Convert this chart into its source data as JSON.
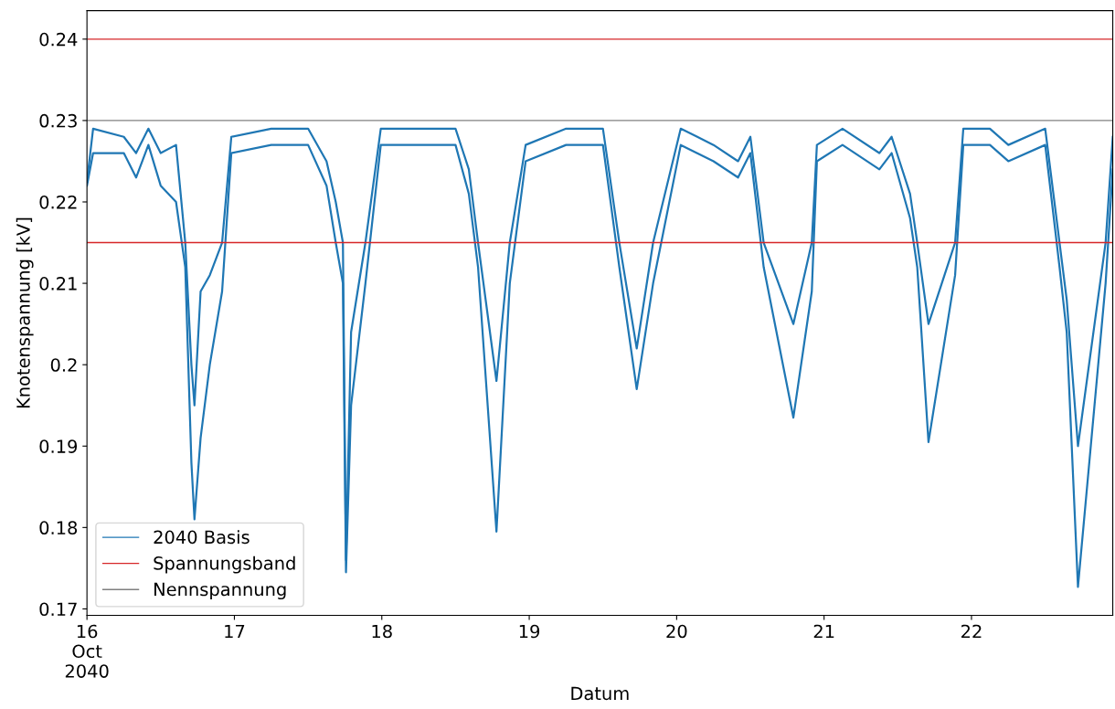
{
  "chart_data": {
    "type": "line",
    "xlabel": "Datum",
    "ylabel": "Knotenspannung [kV]",
    "x": [
      "2040-10-16T00:00",
      "2040-10-16T01:00",
      "2040-10-16T06:00",
      "2040-10-16T08:00",
      "2040-10-16T10:00",
      "2040-10-16T12:00",
      "2040-10-16T14:30",
      "2040-10-16T16:00",
      "2040-10-16T17:00",
      "2040-10-16T17:30",
      "2040-10-16T18:30",
      "2040-10-16T20:00",
      "2040-10-16T22:00",
      "2040-10-16T23:30",
      "2040-10-17T06:00",
      "2040-10-17T12:00",
      "2040-10-17T15:00",
      "2040-10-17T16:30",
      "2040-10-17T17:40",
      "2040-10-17T18:10",
      "2040-10-17T19:00",
      "2040-10-17T21:20",
      "2040-10-17T23:50",
      "2040-10-18T06:00",
      "2040-10-18T12:00",
      "2040-10-18T14:10",
      "2040-10-18T15:40",
      "2040-10-18T18:40",
      "2040-10-18T20:50",
      "2040-10-18T23:25",
      "2040-10-19T06:00",
      "2040-10-19T12:00",
      "2040-10-19T14:40",
      "2040-10-19T17:30",
      "2040-10-19T20:10",
      "2040-10-20T00:40",
      "2040-10-20T06:00",
      "2040-10-20T10:00",
      "2040-10-20T12:00",
      "2040-10-20T14:10",
      "2040-10-20T19:00",
      "2040-10-20T22:00",
      "2040-10-20T22:50",
      "2040-10-21T03:00",
      "2040-10-21T09:00",
      "2040-10-21T11:00",
      "2040-10-21T14:00",
      "2040-10-21T15:10",
      "2040-10-21T17:00",
      "2040-10-21T21:20",
      "2040-10-21T22:40",
      "2040-10-22T03:00",
      "2040-10-22T06:00",
      "2040-10-22T12:00",
      "2040-10-22T14:20",
      "2040-10-22T15:30",
      "2040-10-22T17:20",
      "2040-10-22T21:50",
      "2040-10-22T23:00"
    ],
    "series": [
      {
        "name": "2040 Basis",
        "color": "#1f77b4",
        "values": [
          0.2225,
          0.229,
          0.228,
          0.226,
          0.229,
          0.226,
          0.227,
          0.215,
          0.2,
          0.195,
          0.209,
          0.211,
          0.215,
          0.228,
          0.229,
          0.229,
          0.225,
          0.22,
          0.215,
          0.176,
          0.204,
          0.215,
          0.229,
          0.229,
          0.229,
          0.224,
          0.215,
          0.198,
          0.215,
          0.227,
          0.229,
          0.229,
          0.215,
          0.202,
          0.215,
          0.229,
          0.227,
          0.225,
          0.228,
          0.215,
          0.205,
          0.215,
          0.227,
          0.229,
          0.226,
          0.228,
          0.221,
          0.215,
          0.205,
          0.215,
          0.229,
          0.229,
          0.227,
          0.229,
          0.215,
          0.208,
          0.19,
          0.215,
          0.228
        ]
      },
      {
        "color": "#1f77b4",
        "values": [
          0.222,
          0.226,
          0.226,
          0.223,
          0.227,
          0.222,
          0.22,
          0.212,
          0.188,
          0.181,
          0.191,
          0.2,
          0.209,
          0.226,
          0.227,
          0.227,
          0.222,
          0.215,
          0.21,
          0.1745,
          0.195,
          0.21,
          0.227,
          0.227,
          0.227,
          0.221,
          0.212,
          0.1795,
          0.21,
          0.225,
          0.227,
          0.227,
          0.212,
          0.197,
          0.21,
          0.227,
          0.225,
          0.223,
          0.226,
          0.212,
          0.1935,
          0.209,
          0.225,
          0.227,
          0.224,
          0.226,
          0.218,
          0.212,
          0.1905,
          0.211,
          0.227,
          0.227,
          0.225,
          0.227,
          0.212,
          0.204,
          0.1727,
          0.21,
          0.224
        ]
      }
    ],
    "ref_lines": [
      {
        "axis": "y",
        "value": 0.24,
        "label": "Spannungsband",
        "color": "#d62728"
      },
      {
        "axis": "y",
        "value": 0.215,
        "color": "#d62728"
      },
      {
        "axis": "y",
        "value": 0.23,
        "label": "Nennspannung",
        "color": "#808080"
      }
    ],
    "xlim": [
      "2040-10-16T00:00",
      "2040-10-22T23:00"
    ],
    "xticks": [
      {
        "value": "2040-10-16",
        "label": "16\nOct\n2040"
      },
      {
        "value": "2040-10-17",
        "label": "17"
      },
      {
        "value": "2040-10-18",
        "label": "18"
      },
      {
        "value": "2040-10-19",
        "label": "19"
      },
      {
        "value": "2040-10-20",
        "label": "20"
      },
      {
        "value": "2040-10-21",
        "label": "21"
      },
      {
        "value": "2040-10-22",
        "label": "22"
      }
    ],
    "ylim": [
      0.1692,
      0.2435
    ],
    "yticks": [
      0.17,
      0.18,
      0.19,
      0.2,
      0.21,
      0.22,
      0.23,
      0.24
    ],
    "grid": false,
    "legend": "bottom left"
  }
}
